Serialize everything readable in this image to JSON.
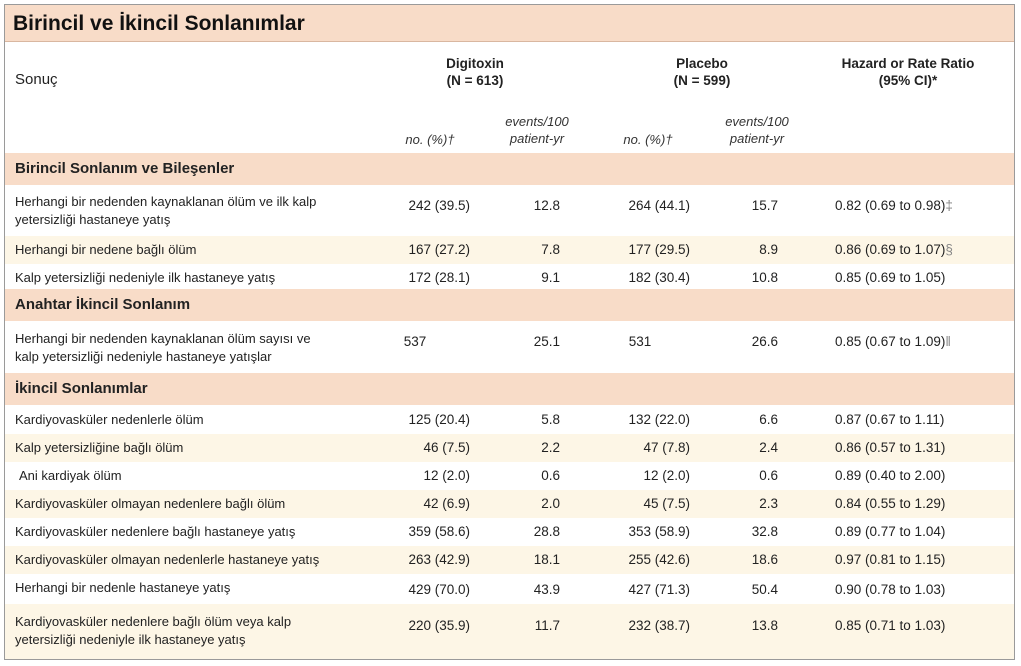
{
  "title": "Birincil ve İkincil Sonlanımlar",
  "header": {
    "outcome": "Sonuç",
    "digitoxin": "Digitoxin",
    "digitoxin_n": "(N = 613)",
    "placebo": "Placebo",
    "placebo_n": "(N = 599)",
    "ratio": "Hazard or Rate Ratio",
    "ratio_ci": "(95% CI)*",
    "no_pct": "no. (%)†",
    "events_line1": "events/100",
    "events_line2": "patient-yr"
  },
  "sections": [
    {
      "name": "Birincil Sonlanım ve Bileşenler",
      "rows": [
        {
          "label1": "Herhangi bir nedenden kaynaklanan ölüm ve ilk kalp",
          "label2": "yetersizliği hastaneye yatış",
          "d_no": "242 (39.5)",
          "d_ev": "12.8",
          "p_no": "264 (44.1)",
          "p_ev": "15.7",
          "hr": "0.82 (0.69 to 0.98)",
          "sym": "‡"
        },
        {
          "label1": "Herhangi bir nedene bağlı ölüm",
          "label2": "",
          "d_no": "167 (27.2)",
          "d_ev": "7.8",
          "p_no": "177 (29.5)",
          "p_ev": "8.9",
          "hr": "0.86 (0.69 to 1.07)",
          "sym": "§"
        },
        {
          "label1": "Kalp yetersizliği nedeniyle ilk hastaneye yatış",
          "label2": "",
          "d_no": "172 (28.1)",
          "d_ev": "9.1",
          "p_no": "182 (30.4)",
          "p_ev": "10.8",
          "hr": "0.85 (0.69 to 1.05)",
          "sym": ""
        }
      ]
    },
    {
      "name": "Anahtar İkincil Sonlanım",
      "rows": [
        {
          "label1": "Herhangi bir nedenden kaynaklanan ölüm sayısı ve",
          "label2": "kalp yetersizliği nedeniyle hastaneye yatışlar",
          "d_no": "537",
          "d_ev": "25.1",
          "p_no": "531",
          "p_ev": "26.6",
          "hr": "0.85 (0.67 to 1.09)",
          "sym": "‖"
        }
      ]
    },
    {
      "name": "İkincil Sonlanımlar",
      "rows": [
        {
          "label1": "Kardiyovasküler nedenlerle ölüm",
          "label2": "",
          "d_no": "125 (20.4)",
          "d_ev": "5.8",
          "p_no": "132 (22.0)",
          "p_ev": "6.6",
          "hr": "0.87 (0.67 to 1.11)",
          "sym": ""
        },
        {
          "label1": "Kalp yetersizliğine bağlı ölüm",
          "label2": "",
          "d_no": "46 (7.5)",
          "d_ev": "2.2",
          "p_no": "47 (7.8)",
          "p_ev": "2.4",
          "hr": "0.86 (0.57 to 1.31)",
          "sym": ""
        },
        {
          "label1": "Ani kardiyak ölüm",
          "label2": "",
          "d_no": "12 (2.0)",
          "d_ev": "0.6",
          "p_no": "12 (2.0)",
          "p_ev": "0.6",
          "hr": "0.89 (0.40 to 2.00)",
          "sym": ""
        },
        {
          "label1": "Kardiyovasküler olmayan nedenlere bağlı ölüm",
          "label2": "",
          "d_no": "42 (6.9)",
          "d_ev": "2.0",
          "p_no": "45 (7.5)",
          "p_ev": "2.3",
          "hr": "0.84 (0.55 to 1.29)",
          "sym": ""
        },
        {
          "label1": "Kardiyovasküler nedenlere bağlı hastaneye yatış",
          "label2": "",
          "d_no": "359 (58.6)",
          "d_ev": "28.8",
          "p_no": "353 (58.9)",
          "p_ev": "32.8",
          "hr": "0.89 (0.77 to 1.04)",
          "sym": ""
        },
        {
          "label1": "Kardiyovasküler olmayan nedenlerle hastaneye yatış",
          "label2": "",
          "d_no": "263 (42.9)",
          "d_ev": "18.1",
          "p_no": "255 (42.6)",
          "p_ev": "18.6",
          "hr": "0.97 (0.81 to 1.15)",
          "sym": ""
        },
        {
          "label1": "Herhangi bir nedenle hastaneye yatış",
          "label2": "",
          "d_no": "429 (70.0)",
          "d_ev": "43.9",
          "p_no": "427 (71.3)",
          "p_ev": "50.4",
          "hr": "0.90 (0.78 to 1.03)",
          "sym": ""
        },
        {
          "label1": "Kardiyovasküler nedenlere bağlı ölüm veya kalp",
          "label2": "yetersizliği nedeniyle ilk hastaneye yatış",
          "d_no": "220 (35.9)",
          "d_ev": "11.7",
          "p_no": "232 (38.7)",
          "p_ev": "13.8",
          "hr": "0.85 (0.71 to 1.03)",
          "sym": ""
        }
      ]
    }
  ]
}
